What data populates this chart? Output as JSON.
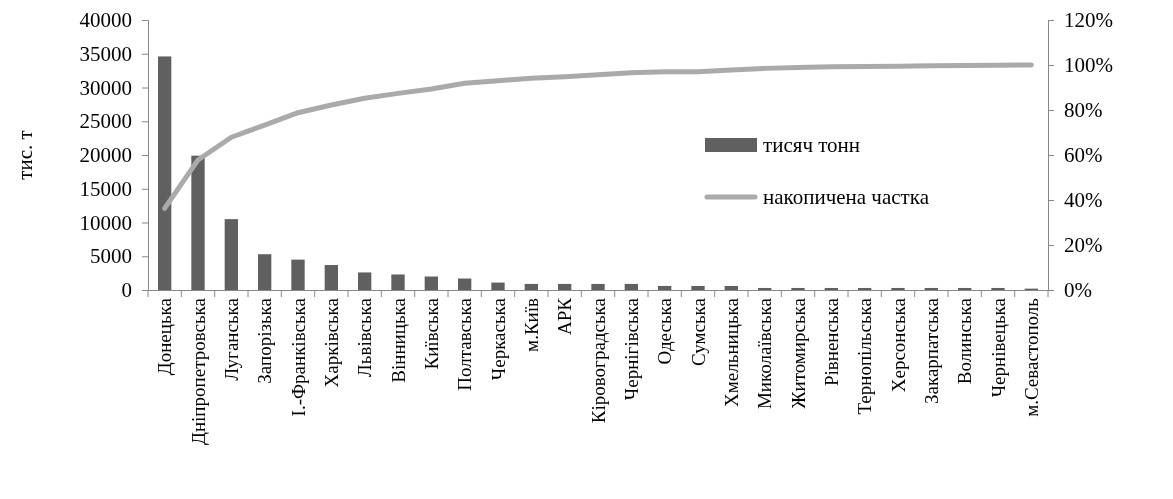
{
  "chart_data": {
    "type": "bar",
    "ylabel": "тис. т",
    "categories": [
      "Донецька",
      "Дніпропетровська",
      "Луганська",
      "Запорізька",
      "І.-Франківська",
      "Харківська",
      "Львівська",
      "Вінницька",
      "Київська",
      "Полтавська",
      "Черкаська",
      "м.Київ",
      "АРК",
      "Кіровоградська",
      "Чернігівська",
      "Одеська",
      "Сумська",
      "Хмельницька",
      "Миколаївська",
      "Житомирська",
      "Рівненська",
      "Тернопільська",
      "Херсонська",
      "Закарпатська",
      "Волинська",
      "Чернівецька",
      "м.Севастополь"
    ],
    "series": [
      {
        "name": "тисяч тонн",
        "color": "#606060",
        "values": [
          34600,
          19900,
          10500,
          5300,
          4500,
          3700,
          2600,
          2300,
          2000,
          1700,
          1100,
          900,
          900,
          900,
          900,
          600,
          600,
          600,
          300,
          300,
          300,
          300,
          300,
          300,
          300,
          300,
          200
        ]
      },
      {
        "name": "накопичена частка",
        "type": "line",
        "axis": "y2",
        "color": "#aaaaaa",
        "values": [
          36.3,
          57.8,
          67.9,
          73.3,
          78.8,
          82.2,
          85.2,
          87.4,
          89.3,
          91.9,
          93.0,
          94.1,
          94.8,
          95.7,
          96.6,
          97.0,
          97.0,
          97.8,
          98.5,
          98.9,
          99.2,
          99.3,
          99.4,
          99.7,
          99.8,
          99.9,
          100
        ]
      }
    ],
    "ylim": [
      0,
      40000
    ],
    "yticks": [
      0,
      5000,
      10000,
      15000,
      20000,
      25000,
      30000,
      35000,
      40000
    ],
    "y2lim": [
      0,
      120
    ],
    "y2ticks": [
      {
        "value": 0,
        "label": "0%"
      },
      {
        "value": 20,
        "label": "20%"
      },
      {
        "value": 40,
        "label": "40%"
      },
      {
        "value": 60,
        "label": "60%"
      },
      {
        "value": 80,
        "label": "80%"
      },
      {
        "value": 100,
        "label": "100%"
      },
      {
        "value": 120,
        "label": "120%"
      }
    ],
    "legend": "right",
    "grid": false,
    "marker": "none",
    "line_style": "solid"
  }
}
